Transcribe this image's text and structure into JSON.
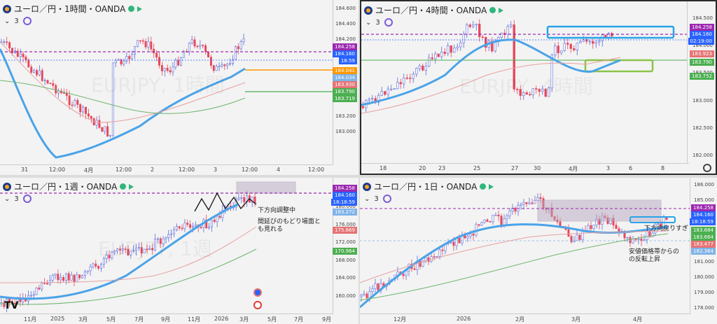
{
  "panels": {
    "tl": {
      "title": "ユーロ／円・1時間・OANDA",
      "indicator_count": "3",
      "watermark": "EURJPY, 1時間",
      "prices": [
        "184.600",
        "184.400",
        "184.200",
        "184.000",
        "183.800",
        "183.600",
        "183.400",
        "183.200",
        "183.000"
      ],
      "tags": [
        {
          "label": "184.258",
          "color": "#9c27b0"
        },
        {
          "label": "184.160",
          "color": "#2962ff"
        },
        {
          "label": "18:59",
          "color": "#2962ff"
        },
        {
          "label": "184.041",
          "color": "#ff9800"
        },
        {
          "label": "184.034",
          "color": "#7fb3e8"
        },
        {
          "label": "183.930",
          "color": "#e57373"
        },
        {
          "label": "183.790",
          "color": "#4caf50"
        },
        {
          "label": "183.719",
          "color": "#4caf50"
        }
      ],
      "dates": [
        "31",
        "12:00",
        "4月",
        "12:00",
        "2",
        "12:00",
        "3",
        "12:00",
        "4",
        "12:00"
      ]
    },
    "tr": {
      "title": "ユーロ／円・4時間・OANDA",
      "indicator_count": "3",
      "watermark": "EURJPY, 4時間",
      "prices": [
        "184.500",
        "184.000",
        "183.500",
        "183.000",
        "182.500",
        "182.000"
      ],
      "tags": [
        {
          "label": "184.258",
          "color": "#9c27b0"
        },
        {
          "label": "184.160",
          "color": "#2962ff"
        },
        {
          "label": "02:19:00",
          "color": "#2962ff"
        },
        {
          "label": "183.923",
          "color": "#e57373"
        },
        {
          "label": "183.790",
          "color": "#4caf50"
        },
        {
          "label": "183.752",
          "color": "#4caf50"
        }
      ],
      "dates": [
        "18",
        "20",
        "23",
        "25",
        "27",
        "30",
        "4月",
        "3",
        "6",
        "8"
      ]
    },
    "bl": {
      "title": "ユーロ／円・1週・OANDA",
      "indicator_count": "3",
      "watermark": "EURJPY, 1週",
      "prices": [
        "184.000",
        "180.000",
        "176.000",
        "172.000",
        "168.000",
        "164.000",
        "160.000"
      ],
      "tags": [
        {
          "label": "184.258",
          "color": "#9c27b0"
        },
        {
          "label": "184.160",
          "color": "#2962ff"
        },
        {
          "label": "18:18:59",
          "color": "#2962ff"
        },
        {
          "label": "183.272",
          "color": "#7fb3e8"
        },
        {
          "label": "175.869",
          "color": "#e57373"
        },
        {
          "label": "170.964",
          "color": "#4caf50"
        }
      ],
      "dates": [
        "11月",
        "2025",
        "3月",
        "5月",
        "7月",
        "9月",
        "11月",
        "2026",
        "3月",
        "5月",
        "7月",
        "9月"
      ],
      "note1": "下方向調整中",
      "note2a": "間延びのもどり場面と",
      "note2b": "も見れる",
      "tv_logo": "TV"
    },
    "br": {
      "title": "ユーロ／円・1日・OANDA",
      "indicator_count": "3",
      "prices": [
        "186.000",
        "185.000",
        "184.000",
        "183.000",
        "182.000",
        "181.000",
        "180.000",
        "179.000",
        "178.000"
      ],
      "tags": [
        {
          "label": "184.258",
          "color": "#9c27b0"
        },
        {
          "label": "184.160",
          "color": "#2962ff"
        },
        {
          "label": "18:18:59",
          "color": "#2962ff"
        },
        {
          "label": "183.684",
          "color": "#4caf50"
        },
        {
          "label": "183.664",
          "color": "#4caf50"
        },
        {
          "label": "183.477",
          "color": "#e57373"
        },
        {
          "label": "182.364",
          "color": "#7fb3e8"
        }
      ],
      "dates": [
        "12月",
        "2026",
        "2月",
        "3月",
        "4月"
      ],
      "note1": "下方向戻りすぎ",
      "note2a": "安値価格帯からの",
      "note2b": "の反転上昇"
    }
  }
}
